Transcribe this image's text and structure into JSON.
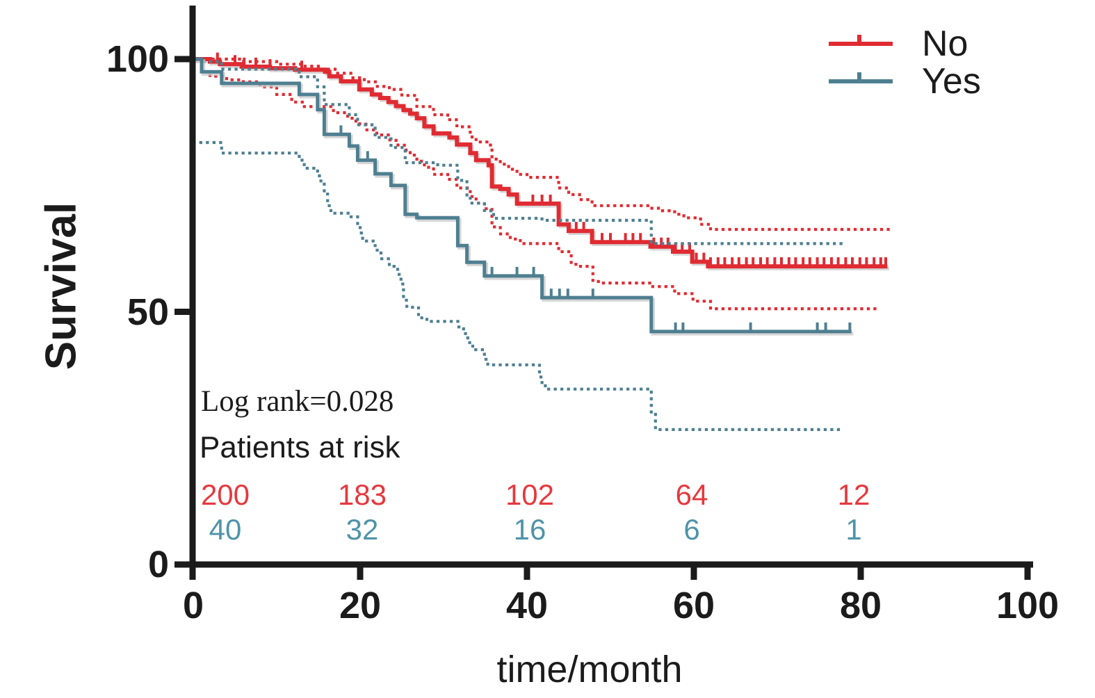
{
  "figure": {
    "background": "#ffffff",
    "text_color": "#1b1b1b",
    "axis_color": "#1b1b1b"
  },
  "chart_data": {
    "type": "line",
    "subtype": "kaplan-meier-step-with-ci",
    "title": "",
    "xlabel": "time/month",
    "ylabel": "Survival",
    "xlim": [
      0,
      100
    ],
    "ylim": [
      0,
      100
    ],
    "x_ticks": [
      0,
      20,
      40,
      60,
      80,
      100
    ],
    "y_ticks": [
      0,
      50,
      100
    ],
    "grid": false,
    "legend_position": "top-right",
    "annotations": [
      {
        "text": "Log rank=0.028"
      }
    ],
    "series": [
      {
        "name": "No",
        "color": "#e02b32",
        "line_style": "solid-step",
        "ci_style": "dotted",
        "steps": [
          [
            0,
            100
          ],
          [
            2,
            99.5
          ],
          [
            3.2,
            99
          ],
          [
            5.8,
            98.5
          ],
          [
            9.2,
            98.2
          ],
          [
            12.2,
            97.9
          ],
          [
            15.8,
            97.5
          ],
          [
            16.3,
            96.6
          ],
          [
            17.7,
            95.6
          ],
          [
            19.9,
            94
          ],
          [
            21.4,
            93
          ],
          [
            22.4,
            92.3
          ],
          [
            23.4,
            91.5
          ],
          [
            24.3,
            90.7
          ],
          [
            25.2,
            89.9
          ],
          [
            26,
            89.2
          ],
          [
            26.8,
            88.3
          ],
          [
            27.7,
            86.7
          ],
          [
            28.8,
            85.3
          ],
          [
            30.7,
            84.5
          ],
          [
            31.6,
            83.1
          ],
          [
            33.2,
            81.4
          ],
          [
            33.9,
            80
          ],
          [
            35.4,
            79
          ],
          [
            35.8,
            74.8
          ],
          [
            36.8,
            74.3
          ],
          [
            37.8,
            73.2
          ],
          [
            38.8,
            71.4
          ],
          [
            43.8,
            67.3
          ],
          [
            45,
            66
          ],
          [
            47.8,
            63.8
          ],
          [
            54.8,
            62.9
          ],
          [
            57.5,
            61.9
          ],
          [
            59.8,
            59.9
          ],
          [
            61.7,
            59
          ],
          [
            83.2,
            59
          ]
        ],
        "censor_months": [
          2.9,
          5,
          6.1,
          7.5,
          9.2,
          13,
          40.7,
          41.8,
          42.8,
          45.9,
          46.8,
          49,
          50,
          51.8,
          52.7,
          53.6,
          55.2,
          56.1,
          56.9,
          57.8,
          58.6,
          59.5,
          60.3,
          61.2,
          62,
          62.9,
          63.7,
          64.6,
          65.4,
          66.3,
          67.1,
          68,
          68.8,
          69.7,
          70.5,
          71.4,
          72.2,
          73.1,
          73.9,
          74.8,
          75.6,
          76.5,
          77.3,
          78.2,
          79,
          79.9,
          80.7,
          81.6,
          82.4,
          83
        ],
        "ci_upper": [
          [
            0,
            100
          ],
          [
            3,
            100
          ],
          [
            6,
            99.5
          ],
          [
            10,
            99
          ],
          [
            13,
            98.6
          ],
          [
            15,
            98
          ],
          [
            17,
            97.2
          ],
          [
            19,
            96.3
          ],
          [
            20.5,
            95.5
          ],
          [
            22,
            94.6
          ],
          [
            23.5,
            94
          ],
          [
            25,
            92.8
          ],
          [
            26.8,
            90.6
          ],
          [
            28.8,
            89
          ],
          [
            30.5,
            88
          ],
          [
            31.6,
            86.6
          ],
          [
            33.2,
            84.6
          ],
          [
            33.9,
            83.6
          ],
          [
            35.4,
            83
          ],
          [
            35.8,
            80.2
          ],
          [
            36.8,
            79.2
          ],
          [
            37.8,
            78.2
          ],
          [
            38.8,
            77.2
          ],
          [
            40,
            76.6
          ],
          [
            43.8,
            74.5
          ],
          [
            45,
            73.2
          ],
          [
            46.3,
            72.2
          ],
          [
            47.8,
            71
          ],
          [
            54.6,
            70.5
          ],
          [
            56,
            70
          ],
          [
            57.7,
            69.3
          ],
          [
            58.8,
            68.6
          ],
          [
            60.8,
            67.3
          ],
          [
            62,
            66.3
          ],
          [
            83.4,
            66.3
          ]
        ],
        "ci_lower": [
          [
            0,
            100
          ],
          [
            1,
            97.5
          ],
          [
            2,
            96.6
          ],
          [
            4,
            95.9
          ],
          [
            6,
            95.5
          ],
          [
            8,
            94.5
          ],
          [
            10,
            93
          ],
          [
            11.8,
            91.5
          ],
          [
            13.2,
            90.6
          ],
          [
            16.8,
            89.4
          ],
          [
            18.5,
            88.3
          ],
          [
            19.5,
            87.2
          ],
          [
            20.7,
            86
          ],
          [
            22,
            85
          ],
          [
            23.5,
            84
          ],
          [
            24.3,
            83
          ],
          [
            25.3,
            82
          ],
          [
            26,
            81
          ],
          [
            26.8,
            79.8
          ],
          [
            27.7,
            78.6
          ],
          [
            28.8,
            77.2
          ],
          [
            30.5,
            76.2
          ],
          [
            31.6,
            74.5
          ],
          [
            33.2,
            72.8
          ],
          [
            33.9,
            71.5
          ],
          [
            34.9,
            70.4
          ],
          [
            35.8,
            66.8
          ],
          [
            36.8,
            65.4
          ],
          [
            38,
            64.4
          ],
          [
            39.2,
            63.5
          ],
          [
            43.8,
            61.9
          ],
          [
            45.3,
            59.4
          ],
          [
            46.4,
            59
          ],
          [
            47.9,
            56
          ],
          [
            48.6,
            55.7
          ],
          [
            54.9,
            55
          ],
          [
            57.7,
            53.6
          ],
          [
            59.9,
            52.1
          ],
          [
            62,
            50.6
          ],
          [
            82,
            50.6
          ]
        ]
      },
      {
        "name": "Yes",
        "color": "#4e7f91",
        "line_style": "solid-step",
        "ci_style": "dotted",
        "steps": [
          [
            0,
            100
          ],
          [
            1,
            97.5
          ],
          [
            3.4,
            95.2
          ],
          [
            12.7,
            93
          ],
          [
            14.9,
            90
          ],
          [
            15.7,
            85.1
          ],
          [
            18.7,
            82.8
          ],
          [
            19.7,
            80
          ],
          [
            21.8,
            77.3
          ],
          [
            23.7,
            75
          ],
          [
            25.4,
            69.3
          ],
          [
            26.8,
            68.6
          ],
          [
            31.7,
            63.1
          ],
          [
            32.8,
            59.8
          ],
          [
            34.9,
            57.1
          ],
          [
            41.8,
            52.8
          ],
          [
            54.9,
            46.1
          ],
          [
            78.9,
            46.1
          ]
        ],
        "censor_months": [
          17.7,
          20.9,
          35.8,
          38.8,
          40.8,
          42.9,
          43.9,
          44.9,
          47.9,
          57.8,
          58.7,
          66.8,
          74.8,
          75.8,
          78.7
        ],
        "ci_upper": [
          [
            0,
            100
          ],
          [
            1,
            99.5
          ],
          [
            3.4,
            98
          ],
          [
            12.7,
            96.5
          ],
          [
            14.9,
            94.5
          ],
          [
            15.7,
            91
          ],
          [
            18.7,
            89
          ],
          [
            19.7,
            87
          ],
          [
            21.8,
            84.5
          ],
          [
            23.7,
            82.5
          ],
          [
            25.4,
            79.5
          ],
          [
            29.3,
            79
          ],
          [
            31.7,
            76
          ],
          [
            32.8,
            73
          ],
          [
            33.2,
            71.5
          ],
          [
            34.9,
            70
          ],
          [
            36,
            68.5
          ],
          [
            41.8,
            68.1
          ],
          [
            54.9,
            63.5
          ],
          [
            78,
            63.5
          ]
        ],
        "ci_lower": [
          [
            0.9,
            83.5
          ],
          [
            3.4,
            81.4
          ],
          [
            12.7,
            80
          ],
          [
            13.3,
            78.4
          ],
          [
            14.9,
            76.9
          ],
          [
            15.3,
            75.5
          ],
          [
            15.7,
            73.5
          ],
          [
            16.1,
            71
          ],
          [
            16.5,
            69.5
          ],
          [
            18.7,
            68.8
          ],
          [
            19.7,
            67
          ],
          [
            20,
            65.6
          ],
          [
            20.3,
            64
          ],
          [
            21.8,
            62.2
          ],
          [
            22.5,
            60.5
          ],
          [
            23.5,
            59
          ],
          [
            24.5,
            57.4
          ],
          [
            24.9,
            55.5
          ],
          [
            25.2,
            52.3
          ],
          [
            25.6,
            50.9
          ],
          [
            27,
            48.8
          ],
          [
            28,
            48.1
          ],
          [
            31.8,
            47
          ],
          [
            32.4,
            45.7
          ],
          [
            32.9,
            43.9
          ],
          [
            33.5,
            42.5
          ],
          [
            34.9,
            40.6
          ],
          [
            35.3,
            39.5
          ],
          [
            41.5,
            37.1
          ],
          [
            41.8,
            35.6
          ],
          [
            42.2,
            34.7
          ],
          [
            54.9,
            30
          ],
          [
            55.4,
            26.7
          ],
          [
            78,
            26.7
          ]
        ]
      }
    ],
    "at_risk": {
      "label": "Patients at risk",
      "time_points_months": [
        0,
        20,
        40,
        60,
        80
      ],
      "rows": [
        {
          "series": "No",
          "color": "#e5383e",
          "values": [
            "200",
            "183",
            "102",
            "64",
            "12"
          ]
        },
        {
          "series": "Yes",
          "color": "#4f93a9",
          "values": [
            "40",
            "32",
            "16",
            "6",
            "1"
          ]
        }
      ]
    }
  }
}
